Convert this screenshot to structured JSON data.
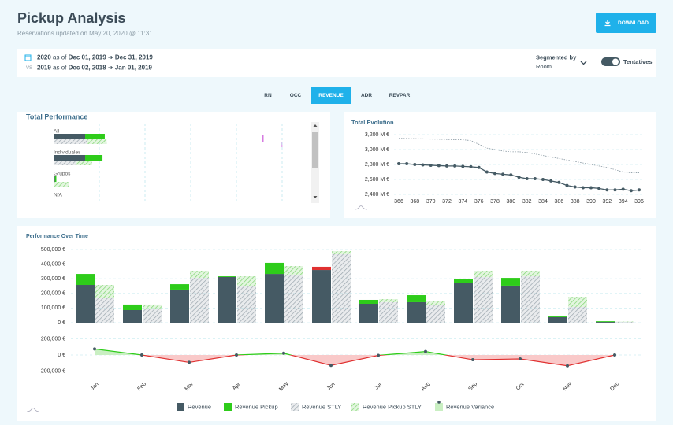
{
  "header": {
    "title": "Pickup Analysis",
    "subtitle": "Reservations updated on May 20, 2020 @ 11:31",
    "button": "DOWNLOAD"
  },
  "filters": {
    "current": {
      "year": "2020",
      "as_of": "as of",
      "from": "Dec 01, 2019",
      "arrow": "➔",
      "to": "Dec 31, 2019"
    },
    "vs": "VS",
    "compare": {
      "year": "2019",
      "as_of": "as of",
      "from": "Dec 02, 2018",
      "arrow": "➔",
      "to": "Jan 01, 2019"
    },
    "segmented_by": "Segmented by",
    "segment": "Room",
    "tentatives": "Tentatives"
  },
  "tabs": [
    "RN",
    "OCC",
    "REVENUE",
    "ADR",
    "REVPAR"
  ],
  "active_tab": 2,
  "chart_data": [
    {
      "type": "hbar",
      "title": "Total Performance",
      "categories": [
        "All",
        "Individuales",
        "Grupos",
        "N/A"
      ],
      "xlim": [
        0,
        5
      ],
      "xticks": [
        1,
        2,
        3,
        4,
        5
      ],
      "grid": true,
      "series": [
        {
          "color": "#455a64",
          "stack": "current",
          "values": [
            0.69,
            0.69,
            0.03,
            0
          ]
        },
        {
          "color": "#2ecc1a",
          "stack": "current",
          "values": [
            0.43,
            0.38,
            0.03,
            0
          ]
        },
        {
          "color": "#9aa5ad",
          "hatch": true,
          "stack": "stly",
          "values": [
            0.74,
            0.5,
            0,
            0
          ]
        },
        {
          "color": "#7ed46f",
          "hatch": true,
          "stack": "stly",
          "values": [
            0.42,
            0.34,
            0.33,
            0
          ]
        }
      ]
    },
    {
      "type": "line",
      "title": "Total Evolution",
      "x": [
        366,
        367,
        368,
        369,
        370,
        371,
        372,
        373,
        374,
        375,
        376,
        377,
        378,
        379,
        380,
        381,
        382,
        383,
        384,
        385,
        386,
        387,
        388,
        389,
        390,
        391,
        392,
        393,
        394,
        395,
        396
      ],
      "xlim": [
        366,
        396
      ],
      "xticks": [
        366,
        368,
        370,
        372,
        374,
        376,
        378,
        380,
        382,
        384,
        386,
        388,
        390,
        392,
        394,
        396
      ],
      "ylim": [
        2380,
        3260
      ],
      "yticks": [
        {
          "value": 2400,
          "label": "2,400 M €"
        },
        {
          "value": 2600,
          "label": "2,600 M €"
        },
        {
          "value": 2800,
          "label": "2,800 M €"
        },
        {
          "value": 3000,
          "label": "3,000 M €"
        },
        {
          "value": 3200,
          "label": "3,200 M €"
        }
      ],
      "grid": true,
      "series": [
        {
          "color": "#8a99a3",
          "dashed": true,
          "markers": false,
          "values": [
            3150,
            3148,
            3146,
            3144,
            3140,
            3138,
            3135,
            3132,
            3130,
            3120,
            3070,
            3020,
            3000,
            2980,
            2970,
            2970,
            2960,
            2940,
            2920,
            2900,
            2880,
            2860,
            2840,
            2820,
            2800,
            2780,
            2760,
            2730,
            2700,
            2690,
            2690
          ]
        },
        {
          "color": "#455a64",
          "dashed": false,
          "markers": true,
          "values": [
            2810,
            2810,
            2800,
            2795,
            2790,
            2785,
            2780,
            2780,
            2775,
            2770,
            2760,
            2700,
            2680,
            2670,
            2660,
            2630,
            2610,
            2610,
            2600,
            2580,
            2560,
            2520,
            2500,
            2490,
            2490,
            2480,
            2460,
            2460,
            2470,
            2450,
            2460
          ]
        }
      ]
    },
    {
      "type": "stacked_bar",
      "title": "Performance Over Time",
      "categories": [
        "Jan",
        "Feb",
        "Mar",
        "Apr",
        "May",
        "Jun",
        "Jul",
        "Aug",
        "Sep",
        "Oct",
        "Nov",
        "Dec"
      ],
      "ylim": [
        0,
        540000
      ],
      "yticks": [
        {
          "value": 0,
          "label": "0 €"
        },
        {
          "value": 100000,
          "label": "100,000 €"
        },
        {
          "value": 200000,
          "label": "200,000 €"
        },
        {
          "value": 300000,
          "label": "300,000 €"
        },
        {
          "value": 400000,
          "label": "400,000 €"
        },
        {
          "value": 500000,
          "label": "500,000 €"
        }
      ],
      "grid": true,
      "series": [
        {
          "name": "Revenue",
          "color": "#455a64",
          "stack": "current",
          "values": [
            258000,
            86000,
            226000,
            312000,
            333000,
            360000,
            129000,
            140000,
            269000,
            253000,
            38000,
            5000
          ]
        },
        {
          "name": "Revenue Pickup",
          "color": "#2ecc1a",
          "negative_color": "#e03131",
          "stack": "current",
          "values": [
            75000,
            38000,
            37000,
            5000,
            76000,
            -22000,
            27000,
            48000,
            27000,
            53000,
            5000,
            5000
          ]
        },
        {
          "name": "Revenue STLY",
          "color": "#9aa5ad",
          "hatch": true,
          "stack": "stly",
          "values": [
            172000,
            97000,
            306000,
            247000,
            323000,
            468000,
            140000,
            118000,
            312000,
            317000,
            108000,
            5000
          ]
        },
        {
          "name": "Revenue Pickup STLY",
          "color": "#7ed46f",
          "hatch": true,
          "stack": "stly",
          "values": [
            86000,
            27000,
            49000,
            70000,
            64000,
            21000,
            21000,
            27000,
            43000,
            38000,
            69000,
            3000
          ]
        }
      ]
    },
    {
      "type": "variance",
      "ylim": [
        -300000,
        300000
      ],
      "yticks": [
        {
          "value": -200000,
          "label": "-200,000 €"
        },
        {
          "value": 0,
          "label": "0 €"
        },
        {
          "value": 200000,
          "label": "200,000 €"
        }
      ],
      "grid": true,
      "series": [
        {
          "name": "Revenue Variance",
          "color": "#2ecc1a",
          "negative_color": "#e03131",
          "fill": "#c9efc2",
          "negative_fill": "#f9c9c9",
          "values": [
            75000,
            0,
            -92000,
            0,
            22000,
            -129000,
            -5000,
            43000,
            -59000,
            -49000,
            -134000,
            0
          ]
        }
      ]
    }
  ]
}
